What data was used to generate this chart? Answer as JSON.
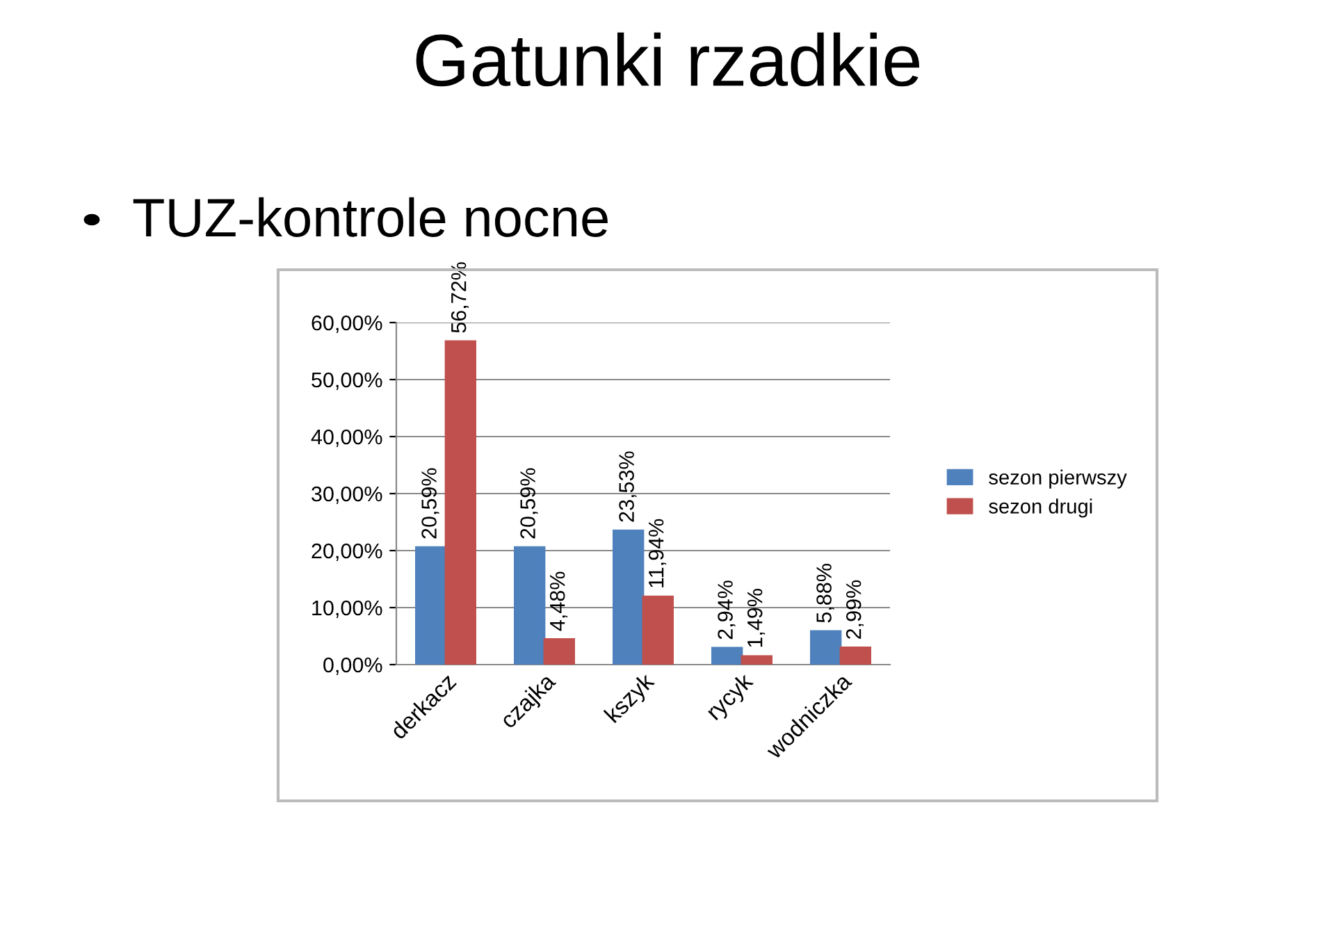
{
  "chart_data": {
    "type": "bar",
    "title": "Gatunki rzadkie",
    "subtitle": "TUZ-kontrole nocne",
    "categories": [
      "derkacz",
      "czajka",
      "kszyk",
      "rycyk",
      "wodniczka"
    ],
    "series": [
      {
        "name": "sezon pierwszy",
        "color": "#4f81bd",
        "values": [
          20.59,
          20.59,
          23.53,
          2.94,
          5.88
        ],
        "value_labels": [
          "20,59%",
          "20,59%",
          "23,53%",
          "2,94%",
          "5,88%"
        ]
      },
      {
        "name": "sezon drugi",
        "color": "#c0504d",
        "values": [
          56.72,
          4.48,
          11.94,
          1.49,
          2.99
        ],
        "value_labels": [
          "56,72%",
          "4,48%",
          "11,94%",
          "1,49%",
          "2,99%"
        ]
      }
    ],
    "ylim": [
      0,
      60
    ],
    "yticks": [
      {
        "value": 0,
        "label": "0,00%"
      },
      {
        "value": 10,
        "label": "10,00%"
      },
      {
        "value": 20,
        "label": "20,00%"
      },
      {
        "value": 30,
        "label": "30,00%"
      },
      {
        "value": 40,
        "label": "40,00%"
      },
      {
        "value": 50,
        "label": "50,00%"
      },
      {
        "value": 60,
        "label": "60,00%"
      }
    ],
    "grid": "y",
    "legend": "right"
  }
}
